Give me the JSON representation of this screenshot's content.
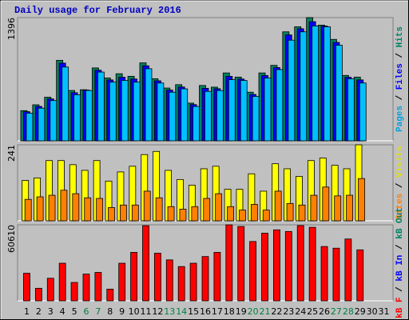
{
  "chart_data": [
    {
      "type": "bar",
      "title": "Daily usage for February 2016",
      "ylim": [
        0,
        1396
      ],
      "yticks": [
        1396
      ],
      "legend_separator": " / ",
      "legend": [
        {
          "name": "Pages",
          "color": "#00a0e0"
        },
        {
          "name": "Files",
          "color": "#0000ff"
        },
        {
          "name": "Hits",
          "color": "#008060"
        }
      ],
      "series": [
        {
          "color": "#008060",
          "values": [
            342,
            408,
            494,
            912,
            570,
            579,
            826,
            712,
            760,
            731,
            883,
            703,
            598,
            636,
            427,
            627,
            608,
            769,
            722,
            551,
            769,
            855,
            1235,
            1292,
            1396,
            1311,
            1149,
            741,
            722,
            null,
            null
          ]
        },
        {
          "color": "#0000ff",
          "values": [
            330,
            390,
            475,
            880,
            545,
            575,
            800,
            690,
            720,
            700,
            850,
            680,
            575,
            610,
            410,
            595,
            590,
            730,
            700,
            525,
            740,
            830,
            1200,
            1270,
            1350,
            1300,
            1115,
            720,
            690,
            null,
            null
          ]
        },
        {
          "color": "#00c0ff",
          "values": [
            313,
            370,
            456,
            836,
            522,
            570,
            779,
            665,
            684,
            665,
            817,
            655,
            551,
            589,
            389,
            560,
            570,
            693,
            684,
            503,
            712,
            807,
            1140,
            1235,
            1301,
            1292,
            1083,
            703,
            655,
            null,
            null
          ]
        }
      ]
    },
    {
      "type": "bar",
      "ylim": [
        0,
        241
      ],
      "yticks": [
        241
      ],
      "legend_separator": " / ",
      "legend": [
        {
          "name": "Sites",
          "color": "#ff8000"
        },
        {
          "name": "Visits",
          "color": "#e0e000"
        }
      ],
      "series": [
        {
          "color": "#ffff00",
          "values": [
            128,
            136,
            191,
            191,
            178,
            160,
            191,
            126,
            155,
            173,
            210,
            220,
            160,
            131,
            113,
            165,
            173,
            100,
            100,
            149,
            94,
            181,
            165,
            141,
            191,
            199,
            176,
            165,
            241,
            null,
            null
          ]
        },
        {
          "color": "#ff8000",
          "values": [
            68,
            76,
            81,
            97,
            86,
            73,
            71,
            42,
            50,
            50,
            94,
            73,
            45,
            37,
            45,
            71,
            86,
            45,
            34,
            52,
            34,
            94,
            55,
            50,
            81,
            107,
            79,
            81,
            134,
            null,
            null
          ]
        }
      ]
    },
    {
      "type": "bar",
      "ylim": [
        0,
        60610
      ],
      "yticks": [
        60610
      ],
      "legend_separator": " / ",
      "legend": [
        {
          "name": "kB F",
          "color": "#ff0000"
        },
        {
          "name": "kB In",
          "color": "#0000ff"
        },
        {
          "name": "kB Out",
          "color": "#008060"
        }
      ],
      "series": [
        {
          "color": "#ff0000",
          "values": [
            21980,
            9990,
            17980,
            29970,
            14650,
            21310,
            22640,
            9320,
            29970,
            38630,
            59950,
            37960,
            32630,
            27310,
            29970,
            35300,
            38630,
            60610,
            59280,
            47290,
            53950,
            56610,
            55280,
            60000,
            58610,
            43290,
            41960,
            49290,
            40630,
            null,
            null
          ]
        }
      ],
      "categories": [
        "1",
        "2",
        "3",
        "4",
        "5",
        "6",
        "7",
        "8",
        "9",
        "10",
        "11",
        "12",
        "13",
        "14",
        "15",
        "16",
        "17",
        "18",
        "19",
        "20",
        "21",
        "22",
        "23",
        "24",
        "25",
        "26",
        "27",
        "28",
        "29",
        "30",
        "31"
      ],
      "category_colors": [
        "#000",
        "#000",
        "#000",
        "#000",
        "#000",
        "#008040",
        "#008040",
        "#000",
        "#000",
        "#000",
        "#000",
        "#000",
        "#008040",
        "#008040",
        "#000",
        "#000",
        "#000",
        "#000",
        "#000",
        "#008040",
        "#008040",
        "#000",
        "#000",
        "#000",
        "#000",
        "#000",
        "#008040",
        "#008040",
        "#000",
        "#000",
        "#000"
      ]
    }
  ]
}
